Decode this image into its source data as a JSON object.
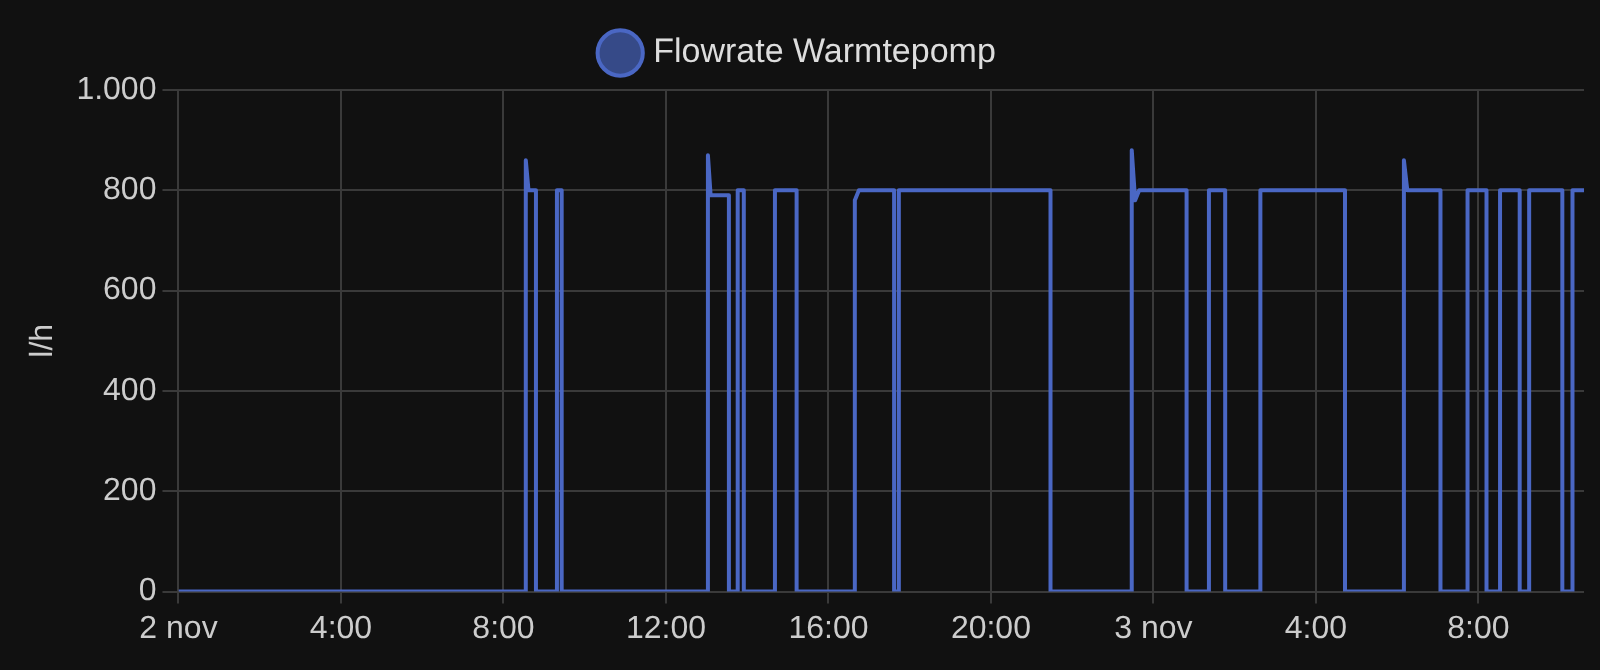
{
  "chart_data": {
    "type": "line",
    "ylabel": "l/h",
    "legend": "top",
    "grid": true,
    "marker": "none",
    "line_style": "solid",
    "xlim": [
      "--11-02T00:00",
      "--11-03T10:36"
    ],
    "xticks": [
      {
        "value": "--11-02T00:00",
        "label": "2 nov"
      },
      {
        "value": "--11-02T04:00",
        "label": "4:00"
      },
      {
        "value": "--11-02T08:00",
        "label": "8:00"
      },
      {
        "value": "--11-02T12:00",
        "label": "12:00"
      },
      {
        "value": "--11-02T16:00",
        "label": "16:00"
      },
      {
        "value": "--11-02T20:00",
        "label": "20:00"
      },
      {
        "value": "--11-03T00:00",
        "label": "3 nov"
      },
      {
        "value": "--11-03T04:00",
        "label": "4:00"
      },
      {
        "value": "--11-03T08:00",
        "label": "8:00"
      }
    ],
    "ylim": [
      0,
      1000
    ],
    "yticks": [
      0,
      200,
      400,
      600,
      800,
      {
        "value": 1000,
        "label": "1.000"
      }
    ],
    "series": [
      {
        "name": "Flowrate Warmtepomp",
        "color": "#4a67c4",
        "x": [
          "--11-02T00:00",
          "--11-02T08:33",
          "--11-02T08:33",
          "--11-02T08:37",
          "--11-02T08:48",
          "--11-02T08:48",
          "--11-02T09:19",
          "--11-02T09:19",
          "--11-02T09:26",
          "--11-02T09:26",
          "--11-02T13:02",
          "--11-02T13:02",
          "--11-02T13:06",
          "--11-02T13:33",
          "--11-02T13:33",
          "--11-02T13:46",
          "--11-02T13:46",
          "--11-02T13:55",
          "--11-02T13:55",
          "--11-02T14:41",
          "--11-02T14:41",
          "--11-02T14:54",
          "--11-02T15:13",
          "--11-02T15:13",
          "--11-02T16:39",
          "--11-02T16:39",
          "--11-02T16:45",
          "--11-02T17:37",
          "--11-02T17:37",
          "--11-02T17:44",
          "--11-02T17:44",
          "--11-02T21:28",
          "--11-02T21:28",
          "--11-02T23:28",
          "--11-02T23:28",
          "--11-02T23:33",
          "--11-02T23:39",
          "--11-03T00:49",
          "--11-03T00:49",
          "--11-03T01:22",
          "--11-03T01:22",
          "--11-03T01:46",
          "--11-03T01:46",
          "--11-03T02:38",
          "--11-03T02:38",
          "--11-03T04:43",
          "--11-03T04:43",
          "--11-03T06:10",
          "--11-03T06:10",
          "--11-03T06:15",
          "--11-03T07:04",
          "--11-03T07:04",
          "--11-03T07:44",
          "--11-03T07:44",
          "--11-03T08:12",
          "--11-03T08:12",
          "--11-03T08:32",
          "--11-03T08:32",
          "--11-03T09:01",
          "--11-03T09:01",
          "--11-03T09:15",
          "--11-03T09:15",
          "--11-03T10:04",
          "--11-03T10:04",
          "--11-03T10:19",
          "--11-03T10:19",
          "--11-03T10:36"
        ],
        "values": [
          0,
          0,
          860,
          800,
          800,
          0,
          0,
          800,
          800,
          0,
          0,
          870,
          790,
          790,
          0,
          0,
          800,
          800,
          0,
          0,
          800,
          800,
          800,
          0,
          0,
          780,
          800,
          800,
          0,
          0,
          800,
          800,
          0,
          0,
          880,
          780,
          800,
          800,
          0,
          0,
          800,
          800,
          0,
          0,
          800,
          800,
          0,
          0,
          860,
          800,
          800,
          0,
          0,
          800,
          800,
          0,
          0,
          800,
          800,
          0,
          0,
          800,
          800,
          0,
          0,
          800,
          800
        ]
      }
    ]
  }
}
